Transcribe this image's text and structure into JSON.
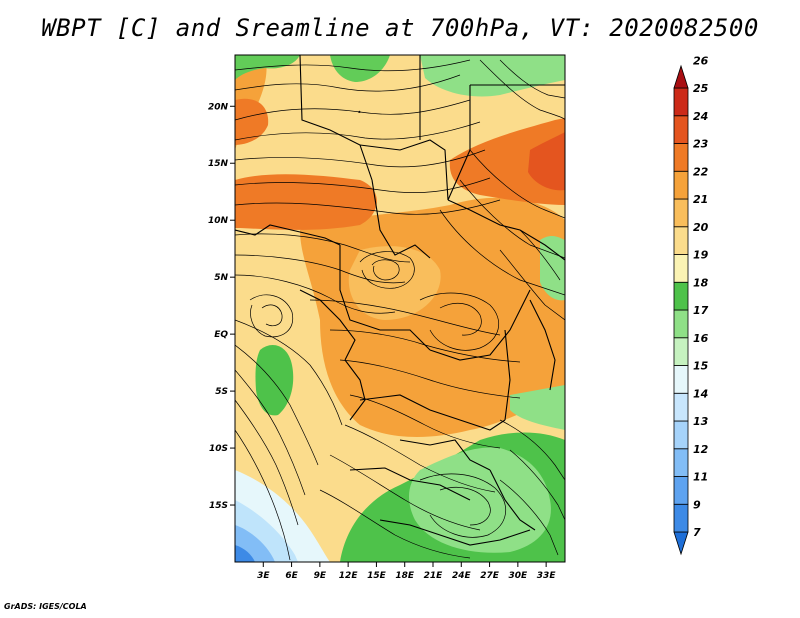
{
  "title": "WBPT [C] and Sreamline at 700hPa, VT: 2020082500",
  "credit": "GrADS: IGES/COLA",
  "map": {
    "variable": "Wet-bulb potential temperature",
    "level": "700hPa",
    "lat_labels": [
      "20N",
      "15N",
      "10N",
      "5N",
      "EQ",
      "5S",
      "10S",
      "15S"
    ],
    "lon_labels": [
      "3E",
      "6E",
      "9E",
      "12E",
      "15E",
      "18E",
      "21E",
      "24E",
      "27E",
      "30E",
      "33E"
    ],
    "lat_values": [
      20,
      15,
      10,
      5,
      0,
      -5,
      -10,
      -15
    ],
    "lon_values": [
      3,
      6,
      9,
      12,
      15,
      18,
      21,
      24,
      27,
      30,
      33
    ],
    "lon_range": [
      0,
      35
    ],
    "lat_range": [
      -20,
      24.5
    ]
  },
  "colorbar": {
    "labels": [
      "7",
      "9",
      "11",
      "12",
      "13",
      "14",
      "15",
      "16",
      "17",
      "18",
      "19",
      "20",
      "21",
      "22",
      "23",
      "24",
      "25",
      "26"
    ],
    "colors": [
      "#1e6fd8",
      "#3d8ae6",
      "#5ea3f0",
      "#82bdf6",
      "#a6d3fa",
      "#c8e6fd",
      "#e6f7fb",
      "#c6f2c0",
      "#8fe087",
      "#4ec24a",
      "#fbf3b4",
      "#fbdc8c",
      "#f9be5c",
      "#f5a23a",
      "#ef7a26",
      "#e4551f",
      "#cc2a18",
      "#a80e12"
    ]
  },
  "colors": {
    "cold": "#2a78dc",
    "cool": "#bfe4fb",
    "green": "#62cc58",
    "yellow": "#fbdc8c",
    "orange": "#f5a23a",
    "dark_orange": "#ef7a26"
  }
}
